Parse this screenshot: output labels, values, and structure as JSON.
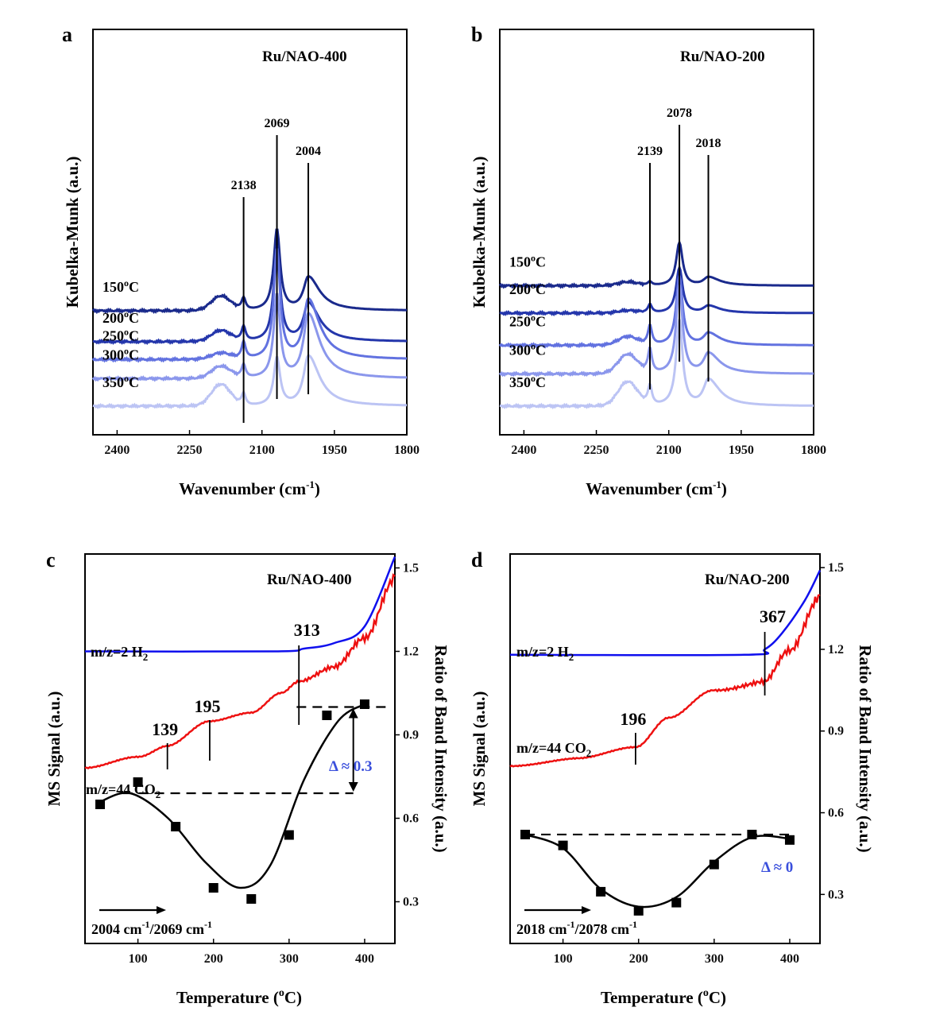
{
  "chart_data": [
    {
      "panel": "a",
      "type": "line",
      "title": "Ru/NAO-400",
      "xlabel": "Wavenumber (cm⁻¹)",
      "ylabel": "Kubelka-Munk (a.u.)",
      "xlim": [
        2450,
        1800
      ],
      "xticks": [
        2400,
        2250,
        2100,
        1950,
        1800
      ],
      "peak_labels": [
        "2138",
        "2069",
        "2004"
      ],
      "peak_positions": [
        2138,
        2069,
        2004
      ],
      "series": [
        {
          "name": "150°C",
          "color": "#1a2a8c",
          "baseline": 5.2,
          "peak_heights": [
            0.5,
            3.4,
            1.4
          ],
          "shoulder_2180": 0.6
        },
        {
          "name": "200°C",
          "color": "#2436ab",
          "baseline": 3.9,
          "peak_heights": [
            0.6,
            4.0,
            1.6
          ],
          "shoulder_2180": 0.45
        },
        {
          "name": "250°C",
          "color": "#6272e0",
          "baseline": 3.15,
          "peak_heights": [
            0.7,
            4.6,
            2.5
          ],
          "shoulder_2180": 0.25
        },
        {
          "name": "300°C",
          "color": "#8b97ec",
          "baseline": 2.35,
          "peak_heights": [
            0.55,
            3.5,
            2.7
          ],
          "shoulder_2180": 0.5
        },
        {
          "name": "350°C",
          "color": "#bcc4f4",
          "baseline": 1.2,
          "peak_heights": [
            0.5,
            2.0,
            2.1
          ],
          "shoulder_2180": 0.9
        }
      ]
    },
    {
      "panel": "b",
      "type": "line",
      "title": "Ru/NAO-200",
      "xlabel": "Wavenumber (cm⁻¹)",
      "ylabel": "Kubelka-Munk (a.u.)",
      "xlim": [
        2450,
        1800
      ],
      "xticks": [
        2400,
        2250,
        2100,
        1950,
        1800
      ],
      "peak_labels": [
        "2139",
        "2078",
        "2018"
      ],
      "peak_positions": [
        2139,
        2078,
        2018
      ],
      "series": [
        {
          "name": "150°C",
          "color": "#1a2a8c",
          "baseline": 6.25,
          "peak_heights": [
            0.15,
            1.8,
            0.35
          ],
          "shoulder_2180": 0.15
        },
        {
          "name": "200°C",
          "color": "#2436ab",
          "baseline": 5.1,
          "peak_heights": [
            0.35,
            1.9,
            0.3
          ],
          "shoulder_2180": 0.1
        },
        {
          "name": "250°C",
          "color": "#6272e0",
          "baseline": 3.75,
          "peak_heights": [
            0.8,
            2.9,
            0.5
          ],
          "shoulder_2180": 0.35
        },
        {
          "name": "300°C",
          "color": "#8b97ec",
          "baseline": 2.55,
          "peak_heights": [
            1.0,
            3.7,
            0.85
          ],
          "shoulder_2180": 0.8
        },
        {
          "name": "350°C",
          "color": "#bcc4f4",
          "baseline": 1.2,
          "peak_heights": [
            0.8,
            3.6,
            1.1
          ],
          "shoulder_2180": 1.0
        }
      ]
    },
    {
      "panel": "c",
      "type": "line",
      "title": "Ru/NAO-400",
      "xlabel": "Temperature (°C)",
      "ylabel": "MS Signal (a.u.)",
      "y2label": "Ratio of Band Intensity (a.u.)",
      "xlim": [
        30,
        440
      ],
      "xticks": [
        100,
        200,
        300,
        400
      ],
      "y2lim": [
        0.15,
        1.55
      ],
      "y2ticks": [
        0.3,
        0.6,
        0.9,
        1.2,
        1.5
      ],
      "h2_label": "m/z=2 H₂",
      "co2_label": "m/z=44 CO₂",
      "h2_onset": "313",
      "co2_features": [
        "139",
        "195"
      ],
      "ratio_label": "2004 cm⁻¹/2069 cm⁻¹",
      "delta_label": "Δ ≈ 0.3",
      "ratio_points": {
        "x": [
          50,
          100,
          150,
          200,
          250,
          300,
          350,
          400
        ],
        "y": [
          0.65,
          0.73,
          0.57,
          0.35,
          0.31,
          0.54,
          0.97,
          1.01
        ]
      },
      "dashed_levels": [
        0.69,
        1.0
      ],
      "h2_trace": {
        "x": [
          30,
          280,
          320,
          360,
          400,
          440
        ],
        "y": [
          1.2,
          1.2,
          1.21,
          1.23,
          1.29,
          1.54
        ]
      },
      "co2_trace": {
        "x": [
          30,
          100,
          139,
          195,
          250,
          290,
          313,
          360,
          400,
          440
        ],
        "y": [
          0.78,
          0.82,
          0.86,
          0.95,
          0.98,
          1.05,
          1.09,
          1.14,
          1.25,
          1.47
        ]
      }
    },
    {
      "panel": "d",
      "type": "line",
      "title": "Ru/NAO-200",
      "xlabel": "Temperature (°C)",
      "ylabel": "MS Signal (a.u.)",
      "y2label": "Ratio of Band Intensity (a.u.)",
      "xlim": [
        30,
        440
      ],
      "xticks": [
        100,
        200,
        300,
        400
      ],
      "y2lim": [
        0.12,
        1.55
      ],
      "y2ticks": [
        0.3,
        0.6,
        0.9,
        1.2,
        1.5
      ],
      "h2_label": "m/z=2 H₂",
      "co2_label": "m/z=44 CO₂",
      "h2_onset": "367",
      "co2_features": [
        "196"
      ],
      "ratio_label": "2018 cm⁻¹/2078 cm⁻¹",
      "delta_label": "Δ ≈ 0",
      "ratio_points": {
        "x": [
          50,
          100,
          150,
          200,
          250,
          300,
          350,
          400
        ],
        "y": [
          0.52,
          0.48,
          0.31,
          0.24,
          0.27,
          0.41,
          0.52,
          0.5
        ]
      },
      "dashed_levels": [
        0.52
      ],
      "h2_trace": {
        "x": [
          30,
          340,
          367,
          390,
          420,
          440
        ],
        "y": [
          1.18,
          1.18,
          1.2,
          1.26,
          1.38,
          1.49
        ]
      },
      "co2_trace": {
        "x": [
          30,
          120,
          196,
          240,
          300,
          367,
          400,
          440
        ],
        "y": [
          0.77,
          0.8,
          0.84,
          0.95,
          1.05,
          1.08,
          1.2,
          1.4
        ]
      }
    }
  ],
  "panel_letters": [
    "a",
    "b",
    "c",
    "d"
  ],
  "temperature_unit_prefix": "Temperature (",
  "temperature_unit_suffix": "C)",
  "temperature_unit_sup": "o"
}
